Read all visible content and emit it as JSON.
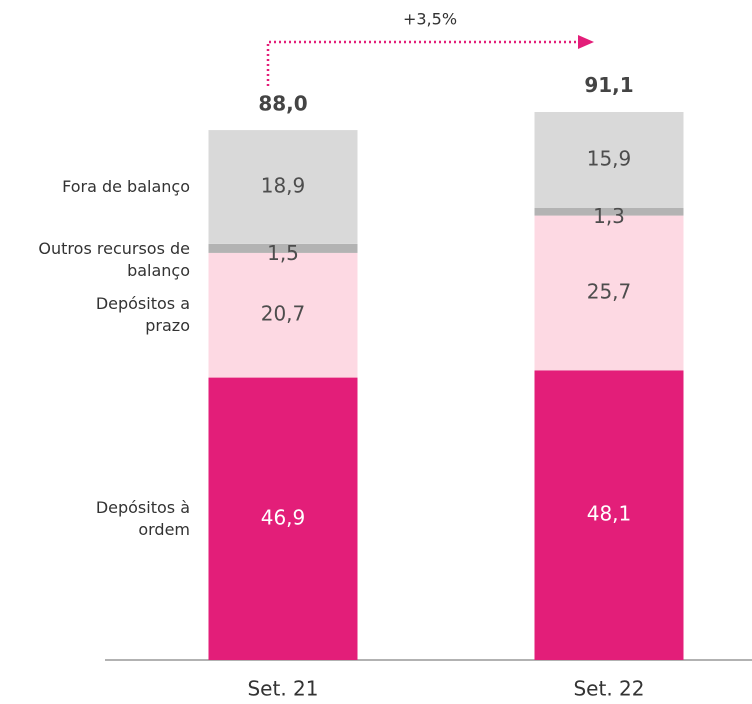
{
  "chart_data": {
    "type": "stacked_bar",
    "categories": [
      "Set. 21",
      "Set. 22"
    ],
    "series": [
      {
        "name": "Depósitos à ordem",
        "color": "#e31e79",
        "values": [
          46.9,
          48.1
        ],
        "value_labels": [
          "46,9",
          "48,1"
        ]
      },
      {
        "name": "Depósitos a prazo",
        "color": "#fdd9e3",
        "values": [
          20.7,
          25.7
        ],
        "value_labels": [
          "20,7",
          "25,7"
        ]
      },
      {
        "name": "Outros recursos de balanço",
        "color": "#b3b3b3",
        "values": [
          1.5,
          1.3
        ],
        "value_labels": [
          "1,5",
          "1,3"
        ]
      },
      {
        "name": "Fora de balanço",
        "color": "#d9d9d9",
        "values": [
          18.9,
          15.9
        ],
        "value_labels": [
          "18,9",
          "15,9"
        ]
      }
    ],
    "totals": [
      88.0,
      91.1
    ],
    "total_labels": [
      "88,0",
      "91,1"
    ],
    "annotation": "+3,5%"
  }
}
